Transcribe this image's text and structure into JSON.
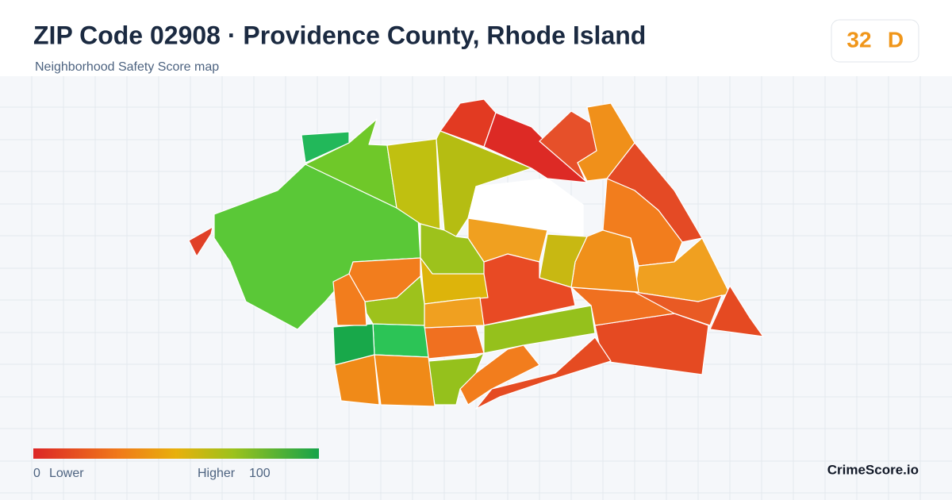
{
  "header": {
    "title": "ZIP Code 02908 · Providence County, Rhode Island",
    "subtitle": "Neighborhood Safety Score map"
  },
  "score": {
    "value": 32,
    "grade": "D"
  },
  "legend": {
    "min": 0,
    "min_label": "Lower",
    "max_label": "Higher",
    "max": 100
  },
  "brand": "CrimeScore.io"
}
